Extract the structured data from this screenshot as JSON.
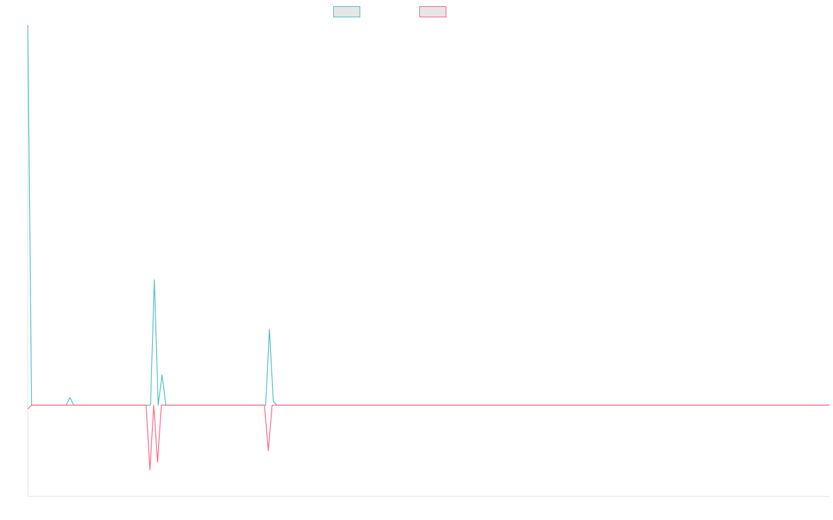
{
  "chart_data": {
    "type": "line",
    "title": "",
    "xlabel": "",
    "ylabel": "",
    "x_range": [
      0,
      200
    ],
    "ylim": [
      -1.2,
      5.0
    ],
    "grid": false,
    "legend": "top-center",
    "series": [
      {
        "color": "#4bc0c0",
        "values": [
          5.0,
          0,
          0,
          0,
          0,
          0,
          0,
          0,
          0,
          0,
          0,
          0.1,
          0,
          0,
          0,
          0,
          0,
          0,
          0,
          0,
          0,
          0,
          0,
          0,
          0,
          0,
          0,
          0,
          0,
          0,
          0,
          0,
          0,
          1.65,
          0,
          0.4,
          0,
          0,
          0,
          0,
          0,
          0,
          0,
          0,
          0,
          0,
          0,
          0,
          0,
          0,
          0,
          0,
          0,
          0,
          0,
          0,
          0,
          0,
          0,
          0,
          0,
          0,
          0,
          1.0,
          0.05,
          0,
          0,
          0,
          0,
          0,
          0,
          0,
          0,
          0,
          0,
          0,
          0,
          0,
          0,
          0,
          0,
          0,
          0,
          0,
          0,
          0,
          0,
          0,
          0,
          0,
          0,
          0,
          0,
          0,
          0,
          0,
          0,
          0,
          0,
          0,
          0,
          0,
          0,
          0,
          0,
          0,
          0,
          0,
          0,
          0,
          0,
          0,
          0,
          0,
          0,
          0,
          0,
          0,
          0,
          0,
          0,
          0,
          0,
          0,
          0,
          0,
          0,
          0,
          0,
          0,
          0,
          0,
          0,
          0,
          0,
          0,
          0,
          0,
          0,
          0,
          0,
          0,
          0,
          0,
          0,
          0,
          0,
          0,
          0,
          0,
          0,
          0,
          0,
          0,
          0,
          0,
          0,
          0,
          0,
          0,
          0,
          0,
          0,
          0,
          0,
          0,
          0,
          0,
          0,
          0,
          0,
          0,
          0,
          0,
          0,
          0,
          0,
          0,
          0,
          0,
          0,
          0,
          0,
          0,
          0,
          0,
          0,
          0,
          0,
          0,
          0,
          0,
          0,
          0,
          0,
          0,
          0,
          0,
          0,
          0,
          0,
          0,
          0,
          0,
          0,
          0,
          0,
          0,
          0,
          0
        ]
      },
      {
        "color": "#ff6384",
        "values": [
          -0.05,
          0,
          0,
          0,
          0,
          0,
          0,
          0,
          0,
          0,
          0,
          0,
          0,
          0,
          0,
          0,
          0,
          0,
          0,
          0,
          0,
          0,
          0,
          0,
          0,
          0,
          0,
          0,
          0,
          0,
          0,
          0,
          -0.85,
          0,
          -0.75,
          0,
          0,
          0,
          0,
          0,
          0,
          0,
          0,
          0,
          0,
          0,
          0,
          0,
          0,
          0,
          0,
          0,
          0,
          0,
          0,
          0,
          0,
          0,
          0,
          0,
          0,
          0,
          0,
          -0.6,
          0,
          0,
          0,
          0,
          0,
          0,
          0,
          0,
          0,
          0,
          0,
          0,
          0,
          0,
          0,
          0,
          0,
          0,
          0,
          0,
          0,
          0,
          0,
          0,
          0,
          0,
          0,
          0,
          0,
          0,
          0,
          0,
          0,
          0,
          0,
          0,
          0,
          0,
          0,
          0,
          0,
          0,
          0,
          0,
          0,
          0,
          0,
          0,
          0,
          0,
          0,
          0,
          0,
          0,
          0,
          0,
          0,
          0,
          0,
          0,
          0,
          0,
          0,
          0,
          0,
          0,
          0,
          0,
          0,
          0,
          0,
          0,
          0,
          0,
          0,
          0,
          0,
          0,
          0,
          0,
          0,
          0,
          0,
          0,
          0,
          0,
          0,
          0,
          0,
          0,
          0,
          0,
          0,
          0,
          0,
          0,
          0,
          0,
          0,
          0,
          0,
          0,
          0,
          0,
          0,
          0,
          0,
          0,
          0,
          0,
          0,
          0,
          0,
          0,
          0,
          0,
          0,
          0,
          0,
          0,
          0,
          0,
          0,
          0,
          0,
          0,
          0,
          0,
          0,
          0,
          0,
          0,
          0,
          0,
          0,
          0,
          0,
          0,
          0,
          0,
          0,
          0,
          0,
          0,
          0,
          0,
          0
        ]
      }
    ]
  }
}
